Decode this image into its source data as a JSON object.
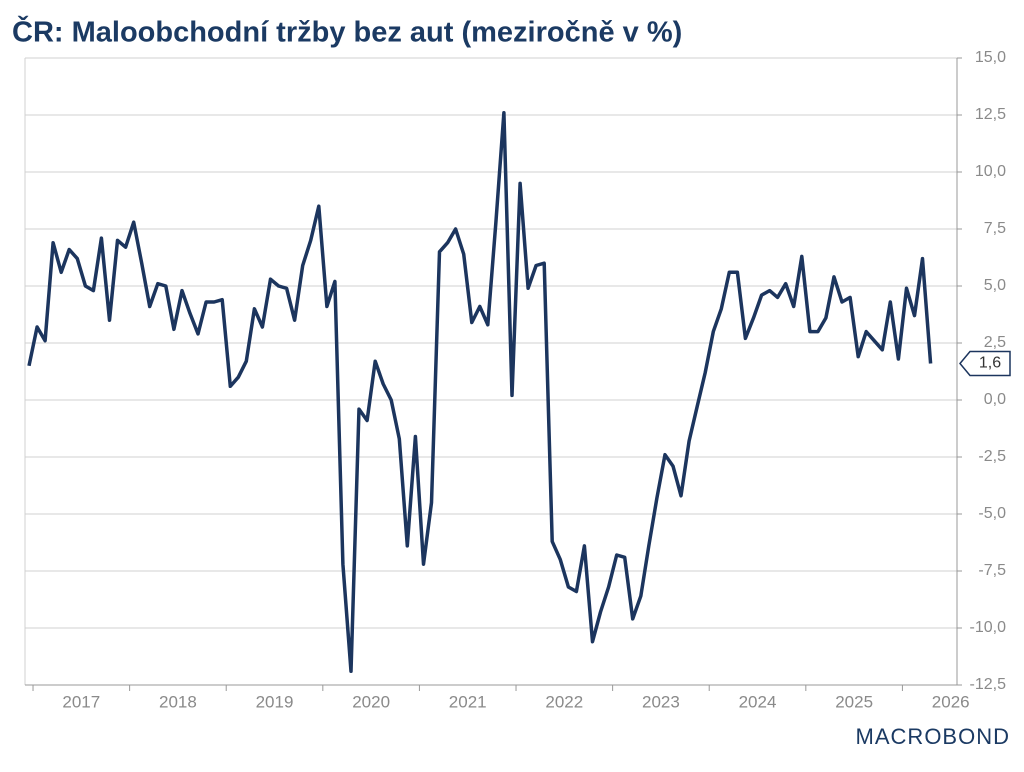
{
  "chart_data": {
    "type": "line",
    "title": "ČR: Maloobchodní tržby bez aut (meziročně v %)",
    "brand": "MACROBOND",
    "x": [
      2016.958,
      2017.042,
      2017.125,
      2017.208,
      2017.292,
      2017.375,
      2017.458,
      2017.542,
      2017.625,
      2017.708,
      2017.792,
      2017.875,
      2017.958,
      2018.042,
      2018.125,
      2018.208,
      2018.292,
      2018.375,
      2018.458,
      2018.542,
      2018.625,
      2018.708,
      2018.792,
      2018.875,
      2018.958,
      2019.042,
      2019.125,
      2019.208,
      2019.292,
      2019.375,
      2019.458,
      2019.542,
      2019.625,
      2019.708,
      2019.792,
      2019.875,
      2019.958,
      2020.042,
      2020.125,
      2020.208,
      2020.292,
      2020.375,
      2020.458,
      2020.542,
      2020.625,
      2020.708,
      2020.792,
      2020.875,
      2020.958,
      2021.042,
      2021.125,
      2021.208,
      2021.292,
      2021.375,
      2021.458,
      2021.542,
      2021.625,
      2021.708,
      2021.792,
      2021.875,
      2021.958,
      2022.042,
      2022.125,
      2022.208,
      2022.292,
      2022.375,
      2022.458,
      2022.542,
      2022.625,
      2022.708,
      2022.792,
      2022.875,
      2022.958,
      2023.042,
      2023.125,
      2023.208,
      2023.292,
      2023.375,
      2023.458,
      2023.542,
      2023.625,
      2023.708,
      2023.792,
      2023.875,
      2023.958,
      2024.042,
      2024.125,
      2024.208,
      2024.292,
      2024.375,
      2024.458,
      2024.542,
      2024.625,
      2024.708,
      2024.792,
      2024.875,
      2024.958,
      2025.042,
      2025.125,
      2025.208,
      2025.292,
      2025.375,
      2025.458,
      2025.542,
      2025.625,
      2025.708,
      2025.792,
      2025.875,
      2025.958,
      2026.042,
      2026.125,
      2026.208,
      2026.292
    ],
    "series": [
      {
        "color": "#1c355e",
        "values": [
          1.5,
          3.2,
          2.6,
          6.9,
          5.6,
          6.6,
          6.2,
          5.0,
          4.8,
          7.1,
          3.5,
          7.0,
          6.7,
          7.8,
          6.0,
          4.1,
          5.1,
          5.0,
          3.1,
          4.8,
          3.8,
          2.9,
          4.3,
          4.3,
          4.4,
          0.6,
          1.0,
          1.7,
          4.0,
          3.2,
          5.3,
          5.0,
          4.9,
          3.5,
          5.9,
          7.0,
          8.5,
          4.1,
          5.2,
          -7.2,
          -11.9,
          -0.4,
          -0.9,
          1.7,
          0.7,
          0.0,
          -1.7,
          -6.4,
          -1.6,
          -7.2,
          -4.5,
          6.5,
          6.9,
          7.5,
          6.4,
          3.4,
          4.1,
          3.3,
          7.8,
          12.6,
          0.2,
          9.5,
          4.9,
          5.9,
          6.0,
          -6.2,
          -7.0,
          -8.2,
          -8.4,
          -6.4,
          -10.6,
          -9.3,
          -8.2,
          -6.8,
          -6.9,
          -9.6,
          -8.6,
          -6.4,
          -4.3,
          -2.4,
          -2.9,
          -4.2,
          -1.8,
          -0.3,
          1.2,
          3.0,
          4.0,
          5.6,
          5.6,
          2.7,
          3.6,
          4.6,
          4.8,
          4.5,
          5.1,
          4.1,
          6.3,
          3.0,
          3.0,
          3.6,
          5.4,
          4.3,
          4.5,
          1.9,
          3.0,
          2.6,
          2.2,
          4.3,
          1.8,
          4.9,
          3.7,
          6.2,
          1.6
        ],
        "last_value_label": "1,6"
      }
    ],
    "xlim": [
      2016.917,
      2026.565
    ],
    "xticks": [
      2017,
      2018,
      2019,
      2020,
      2021,
      2022,
      2023,
      2024,
      2025,
      2026
    ],
    "ylim": [
      -12.5,
      15
    ],
    "yticks": [
      {
        "value": -12.5,
        "label": "-12,5"
      },
      {
        "value": -10,
        "label": "-10,0"
      },
      {
        "value": -7.5,
        "label": "-7,5"
      },
      {
        "value": -5,
        "label": "-5,0"
      },
      {
        "value": -2.5,
        "label": "-2,5"
      },
      {
        "value": 0,
        "label": "0,0"
      },
      {
        "value": 2.5,
        "label": "2,5"
      },
      {
        "value": 5,
        "label": "5,0"
      },
      {
        "value": 7.5,
        "label": "7,5"
      },
      {
        "value": 10,
        "label": "10,0"
      },
      {
        "value": 12.5,
        "label": "12,5"
      },
      {
        "value": 15,
        "label": "15,0"
      }
    ],
    "grid": true
  }
}
